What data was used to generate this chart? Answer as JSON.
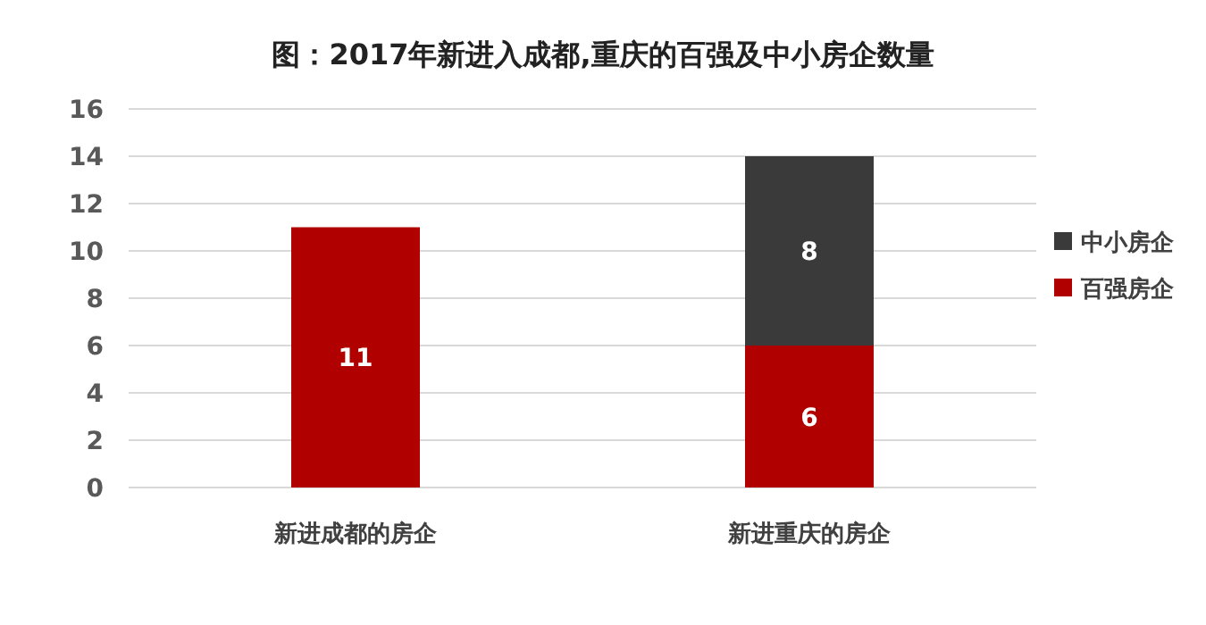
{
  "chart_data": {
    "type": "bar",
    "title": "图：2017年新进入成都,重庆的百强及中小房企数量",
    "categories": [
      "新进成都的房企",
      "新进重庆的房企"
    ],
    "stacked": true,
    "series": [
      {
        "name": "百强房企",
        "color": "#b00000",
        "values": [
          11,
          6
        ]
      },
      {
        "name": "中小房企",
        "color": "#3a3a3a",
        "values": [
          null,
          8
        ]
      }
    ],
    "ylim": [
      0,
      16
    ],
    "yticks": [
      0,
      2,
      4,
      6,
      8,
      10,
      12,
      14,
      16
    ],
    "grid": "y",
    "data_labels": true,
    "legend": "right"
  }
}
